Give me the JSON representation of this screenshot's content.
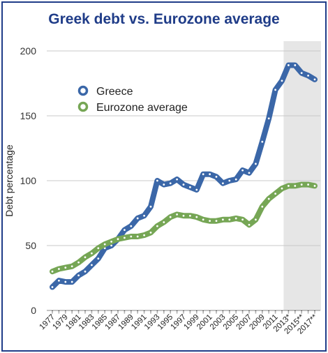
{
  "chart_data": {
    "type": "line",
    "title": "Greek debt vs. Eurozone average",
    "ylabel": "Debt percentage",
    "xlabel": "",
    "ylim": [
      0,
      200
    ],
    "yticks": [
      "0",
      "50",
      "100",
      "150",
      "200"
    ],
    "x": [
      "1977",
      "1978",
      "1979",
      "1980",
      "1981",
      "1982",
      "1983",
      "1984",
      "1985",
      "1986",
      "1987",
      "1988",
      "1989",
      "1990",
      "1991",
      "1992",
      "1993",
      "1994",
      "1995",
      "1996",
      "1997",
      "1998",
      "1999",
      "2000",
      "2001",
      "2002",
      "2003",
      "2004",
      "2005",
      "2006",
      "2007",
      "2008",
      "2009",
      "2010",
      "2011",
      "2012",
      "2013*",
      "2014",
      "2015**",
      "2016",
      "2017**"
    ],
    "x_tick_labels": [
      "1977",
      "1979",
      "1981",
      "1983",
      "1985",
      "1987",
      "1989",
      "1991",
      "1993",
      "1995",
      "1997",
      "1999",
      "2001",
      "2003",
      "2005",
      "2007",
      "2009",
      "2011",
      "2013*",
      "2015**",
      "2017**"
    ],
    "shaded_region": [
      "2013*",
      "2017**"
    ],
    "grid": true,
    "legend_position": "top-left",
    "series": [
      {
        "name": "Greece",
        "color": "#3b67a8",
        "values": [
          18,
          23,
          22,
          22,
          27,
          30,
          35,
          40,
          48,
          50,
          55,
          62,
          65,
          71,
          73,
          80,
          100,
          97,
          98,
          101,
          97,
          95,
          93,
          105,
          105,
          103,
          98,
          100,
          101,
          108,
          106,
          113,
          130,
          148,
          170,
          177,
          189,
          189,
          183,
          181,
          178
        ]
      },
      {
        "name": "Eurozone average",
        "color": "#76a655",
        "values": [
          30,
          32,
          33,
          34,
          37,
          41,
          44,
          48,
          51,
          53,
          55,
          56,
          57,
          57,
          58,
          60,
          65,
          68,
          72,
          74,
          73,
          73,
          72,
          70,
          69,
          69,
          70,
          70,
          71,
          70,
          66,
          70,
          80,
          86,
          90,
          94,
          96,
          96,
          97,
          97,
          96
        ]
      }
    ]
  }
}
